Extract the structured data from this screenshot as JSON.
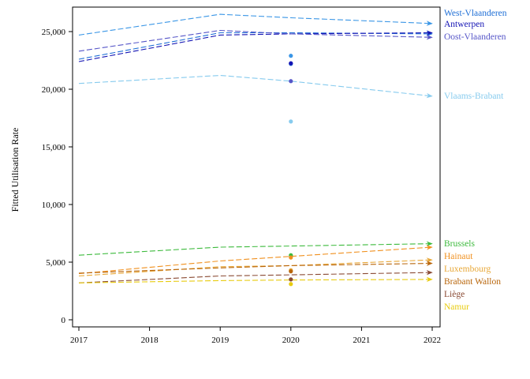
{
  "chart_data": {
    "type": "line",
    "title": "",
    "xlabel": "",
    "ylabel": "Fitted Utilisation Rate",
    "xlim": [
      2017,
      2022
    ],
    "ylim": [
      -500,
      27500
    ],
    "x_ticks": [
      2017,
      2018,
      2019,
      2020,
      2021,
      2022
    ],
    "x_tick_labels": [
      "2017",
      "2018",
      "2019",
      "2020",
      "2021",
      "2022"
    ],
    "y_ticks": [
      0,
      5000,
      10000,
      15000,
      20000,
      25000
    ],
    "y_tick_labels": [
      "0",
      "5,000",
      "10,000",
      "15,000",
      "20,000",
      "25,000"
    ],
    "grid": false,
    "legend": "direct labels right of plot",
    "observed_x": 2020,
    "series": [
      {
        "name": "West-Vlaanderen",
        "color": "#1f6fd6",
        "x": [
          2017,
          2019,
          2020,
          2022
        ],
        "values": [
          22600,
          24900,
          24900,
          24800
        ],
        "observed": 22200
      },
      {
        "name": "Antwerpen",
        "color": "#1414b4",
        "x": [
          2017,
          2019,
          2020,
          2022
        ],
        "values": [
          22400,
          24700,
          24800,
          24900
        ],
        "observed": 22250
      },
      {
        "name": "Oost-Vlaanderen",
        "color": "#5656c8",
        "x": [
          2017,
          2019,
          2020,
          2022
        ],
        "values": [
          23300,
          25100,
          24800,
          24500
        ],
        "observed": 20700
      },
      {
        "name": "",
        "color": "#3a96e6",
        "x": [
          2017,
          2019,
          2020,
          2022
        ],
        "values": [
          24700,
          26500,
          26200,
          25700
        ],
        "observed": 22900
      },
      {
        "name": "Vlaams-Brabant",
        "color": "#87cbee",
        "x": [
          2017,
          2019,
          2020,
          2022
        ],
        "values": [
          20500,
          21200,
          20700,
          19400
        ],
        "observed": 17200
      },
      {
        "name": "Brussels",
        "color": "#3cba3c",
        "x": [
          2017,
          2019,
          2020,
          2022
        ],
        "values": [
          5600,
          6300,
          6400,
          6600
        ],
        "observed": 5600
      },
      {
        "name": "Hainaut",
        "color": "#f0901e",
        "x": [
          2017,
          2019,
          2020,
          2022
        ],
        "values": [
          4000,
          5100,
          5500,
          6300
        ],
        "observed": 5400
      },
      {
        "name": "Luxembourg",
        "color": "#e8a838",
        "x": [
          2017,
          2019,
          2020,
          2022
        ],
        "values": [
          3800,
          4600,
          4700,
          5200
        ],
        "observed": 4300
      },
      {
        "name": "Brabant Wallon",
        "color": "#b8650a",
        "x": [
          2017,
          2019,
          2020,
          2022
        ],
        "values": [
          4050,
          4500,
          4700,
          4900
        ],
        "observed": 4200
      },
      {
        "name": "Liège",
        "color": "#8a4a33",
        "x": [
          2017,
          2019,
          2020,
          2022
        ],
        "values": [
          3200,
          3800,
          3900,
          4100
        ],
        "observed": 3500
      },
      {
        "name": "Namur",
        "color": "#e8cc10",
        "x": [
          2017,
          2019,
          2020,
          2022
        ],
        "values": [
          3200,
          3400,
          3450,
          3500
        ],
        "observed": 3100
      }
    ]
  }
}
